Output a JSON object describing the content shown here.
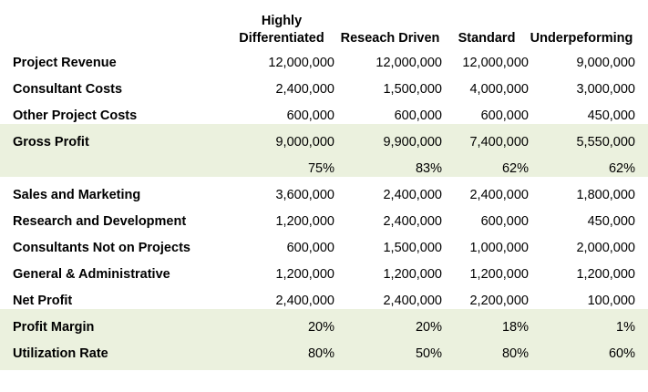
{
  "table": {
    "columns": [
      "Highly\nDifferentiated",
      "Reseach Driven",
      "Standard",
      "Underpeforming"
    ],
    "rows": [
      {
        "label": "Project Revenue",
        "values": [
          "12,000,000",
          "12,000,000",
          "12,000,000",
          "9,000,000"
        ],
        "shaded": false
      },
      {
        "label": "Consultant Costs",
        "values": [
          "2,400,000",
          "1,500,000",
          "4,000,000",
          "3,000,000"
        ],
        "shaded": false
      },
      {
        "label": "Other Project Costs",
        "values": [
          "600,000",
          "600,000",
          "600,000",
          "450,000"
        ],
        "shaded": false
      },
      {
        "label": "Gross Profit",
        "values": [
          "9,000,000",
          "9,900,000",
          "7,400,000",
          "5,550,000"
        ],
        "shaded": true
      },
      {
        "label": "",
        "values": [
          "75%",
          "83%",
          "62%",
          "62%"
        ],
        "shaded": true
      },
      {
        "label": "Sales and Marketing",
        "values": [
          "3,600,000",
          "2,400,000",
          "2,400,000",
          "1,800,000"
        ],
        "shaded": false
      },
      {
        "label": "Research and Development",
        "values": [
          "1,200,000",
          "2,400,000",
          "600,000",
          "450,000"
        ],
        "shaded": false
      },
      {
        "label": "Consultants Not on Projects",
        "values": [
          "600,000",
          "1,500,000",
          "1,000,000",
          "2,000,000"
        ],
        "shaded": false
      },
      {
        "label": "General & Administrative",
        "values": [
          "1,200,000",
          "1,200,000",
          "1,200,000",
          "1,200,000"
        ],
        "shaded": false
      },
      {
        "label": "Net Profit",
        "values": [
          "2,400,000",
          "2,400,000",
          "2,200,000",
          "100,000"
        ],
        "shaded": false
      },
      {
        "label": "Profit Margin",
        "values": [
          "20%",
          "20%",
          "18%",
          "1%"
        ],
        "shaded": true
      },
      {
        "label": "Utilization Rate",
        "values": [
          "80%",
          "50%",
          "80%",
          "60%"
        ],
        "shaded": true
      }
    ]
  },
  "colors": {
    "shade": "#ebf1de",
    "text": "#000000",
    "background": "#ffffff"
  }
}
